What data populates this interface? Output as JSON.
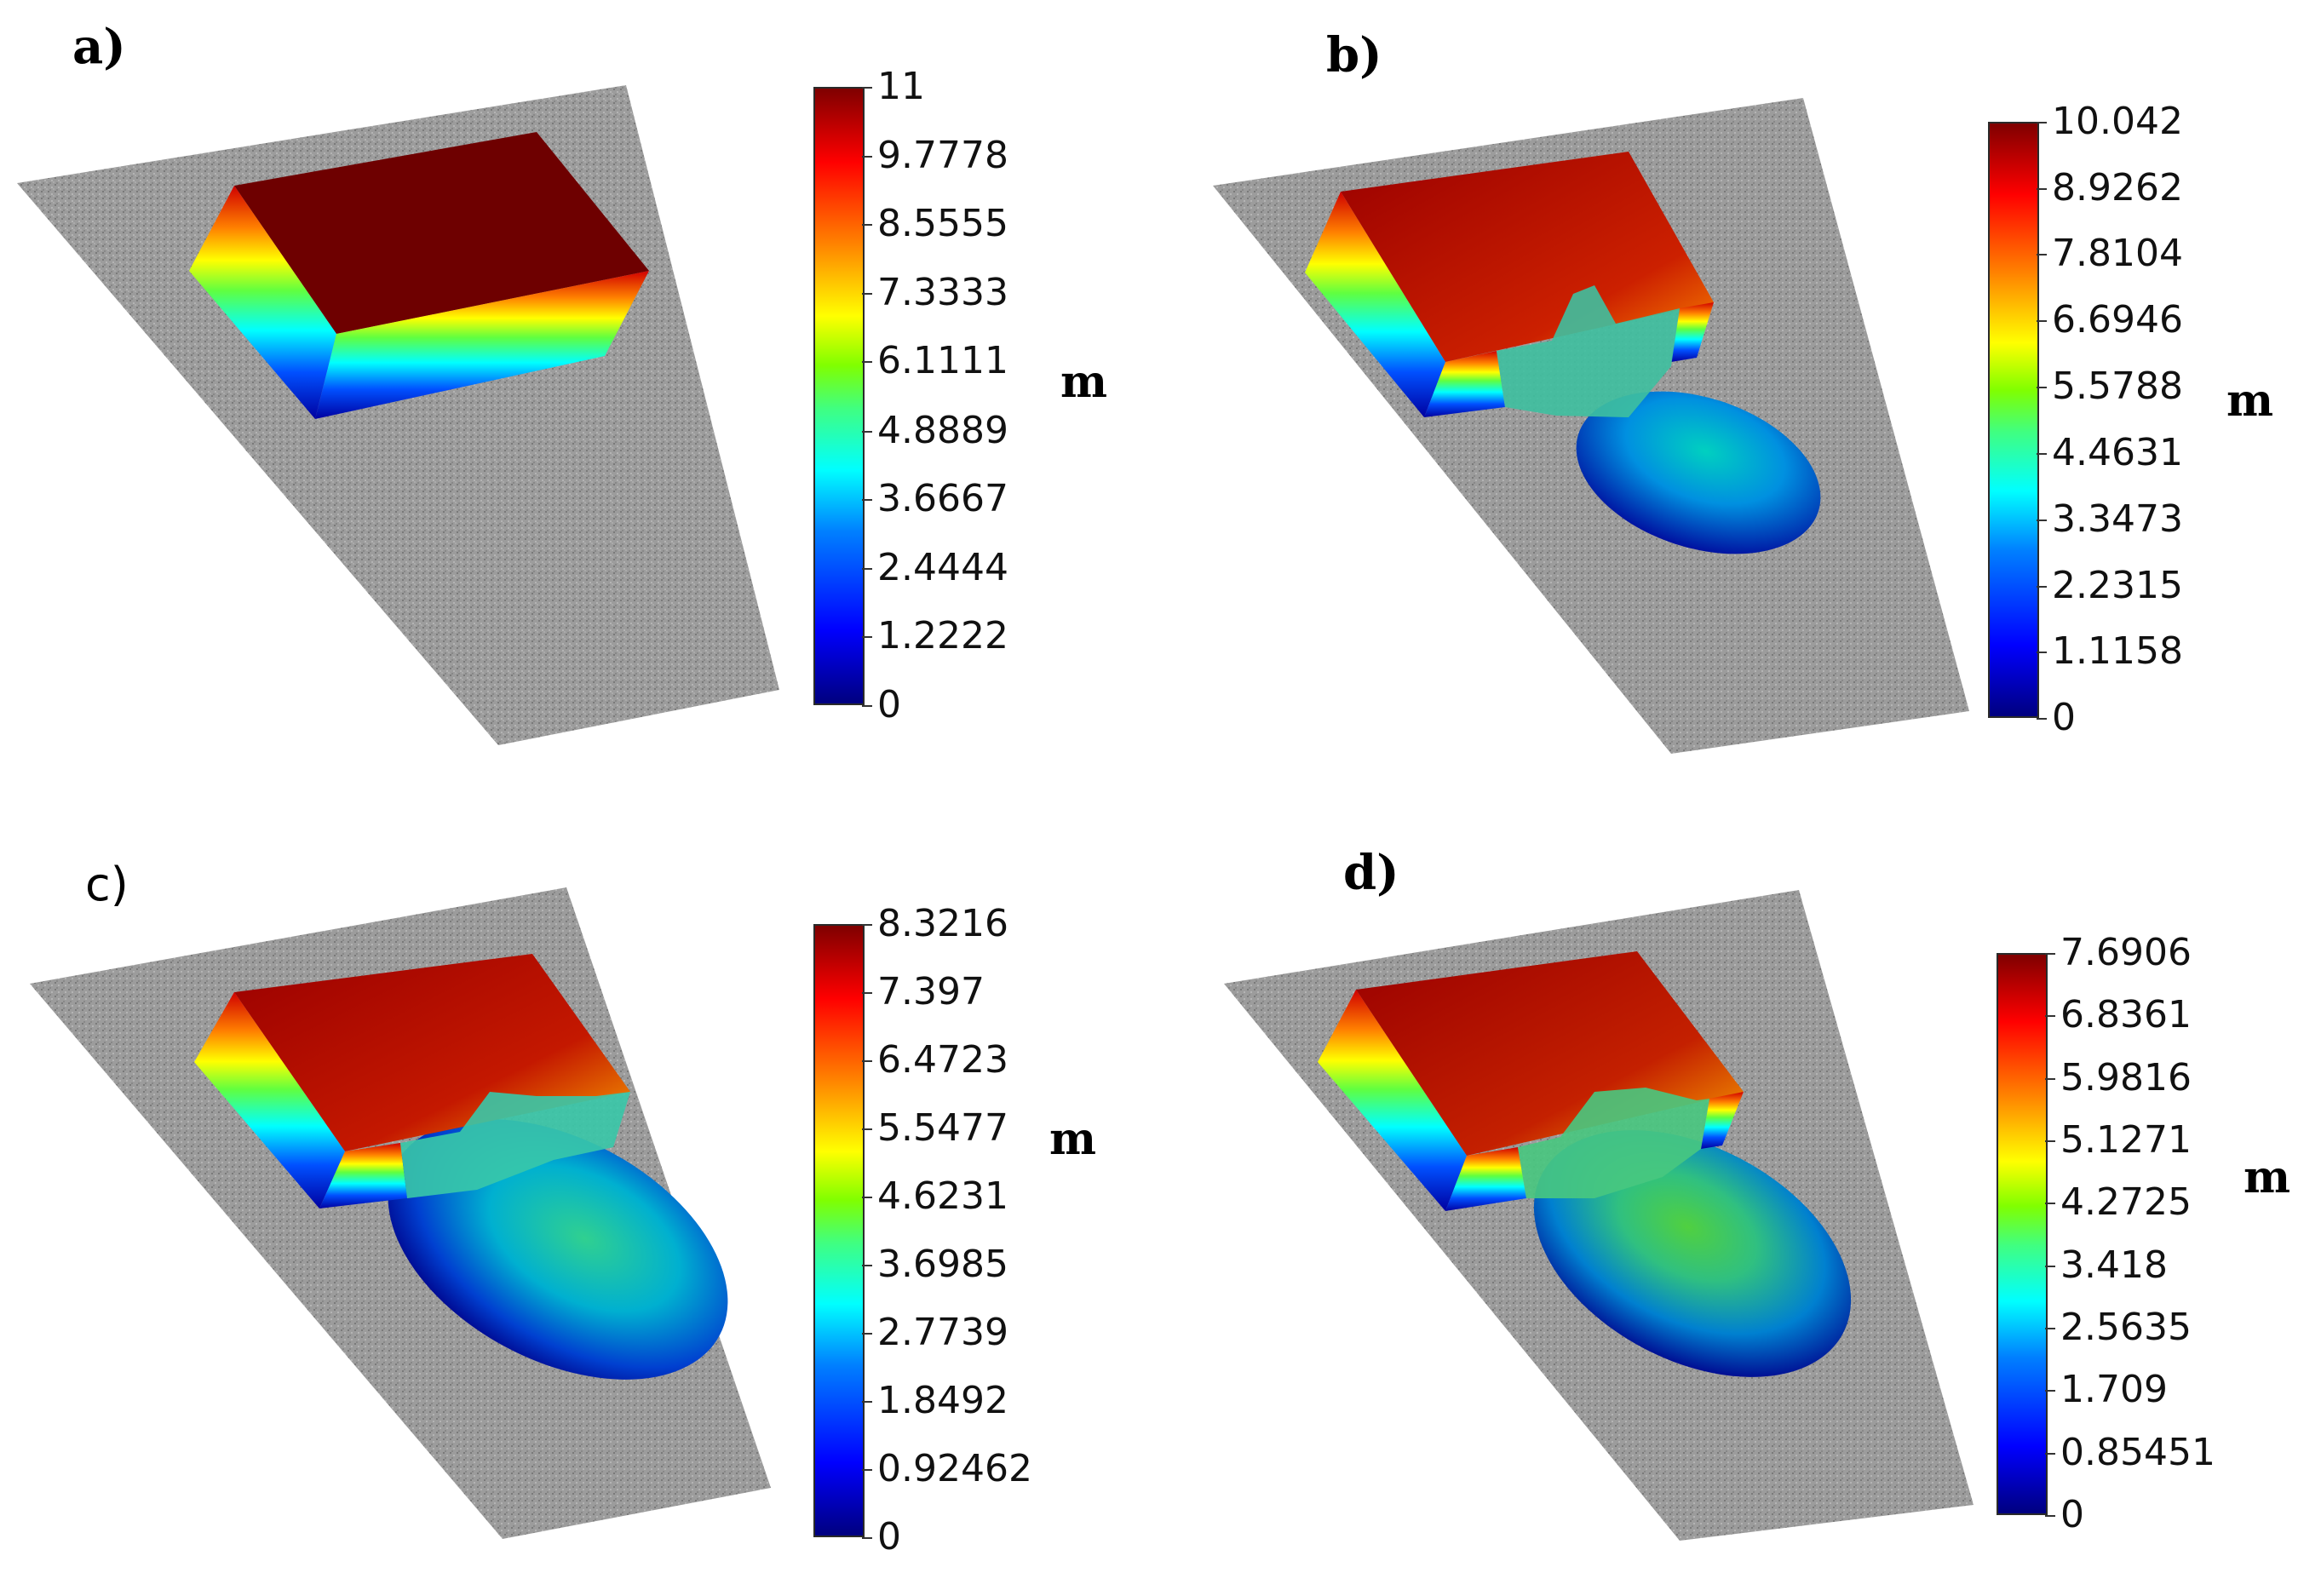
{
  "panels": [
    {
      "label": "a)",
      "unit": "m",
      "ticks": [
        "11",
        "9.7778",
        "8.5555",
        "7.3333",
        "6.1111",
        "4.8889",
        "3.6667",
        "2.4444",
        "1.2222",
        "0"
      ]
    },
    {
      "label": "b)",
      "unit": "m",
      "ticks": [
        "10.042",
        "8.9262",
        "7.8104",
        "6.6946",
        "5.5788",
        "4.4631",
        "3.3473",
        "2.2315",
        "1.1158",
        "0"
      ]
    },
    {
      "label": "c)",
      "unit": "m",
      "ticks": [
        "8.3216",
        "7.397",
        "6.4723",
        "5.5477",
        "4.6231",
        "3.6985",
        "2.7739",
        "1.8492",
        "0.92462",
        "0"
      ]
    },
    {
      "label": "d)",
      "unit": "m",
      "ticks": [
        "7.6906",
        "6.8361",
        "5.9816",
        "5.1271",
        "4.2725",
        "3.418",
        "2.5635",
        "1.709",
        "0.85451",
        "0"
      ]
    }
  ],
  "colors": {
    "ground": "#9a9a9a",
    "colormap": [
      "#00007f",
      "#0000ff",
      "#00ffff",
      "#ffff00",
      "#ff0000",
      "#7f0000"
    ]
  }
}
